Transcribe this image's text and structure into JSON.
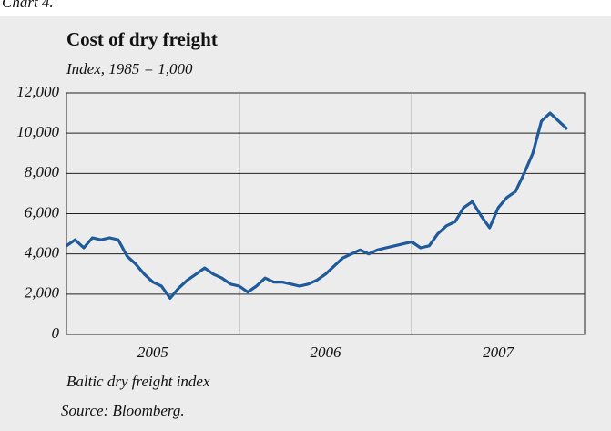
{
  "caption": "Chart 4.",
  "chart_data": {
    "type": "line",
    "title": "Cost of dry freight",
    "subtitle": "Index, 1985 = 1,000",
    "x": [
      2005.0,
      2005.05,
      2005.1,
      2005.15,
      2005.2,
      2005.25,
      2005.3,
      2005.35,
      2005.4,
      2005.45,
      2005.5,
      2005.55,
      2005.6,
      2005.65,
      2005.7,
      2005.75,
      2005.8,
      2005.85,
      2005.9,
      2005.95,
      2006.0,
      2006.05,
      2006.1,
      2006.15,
      2006.2,
      2006.25,
      2006.3,
      2006.35,
      2006.4,
      2006.45,
      2006.5,
      2006.55,
      2006.6,
      2006.65,
      2006.7,
      2006.75,
      2006.8,
      2006.85,
      2006.9,
      2006.95,
      2007.0,
      2007.05,
      2007.1,
      2007.15,
      2007.2,
      2007.25,
      2007.3,
      2007.35,
      2007.4,
      2007.45,
      2007.5,
      2007.55,
      2007.6,
      2007.65,
      2007.7,
      2007.75,
      2007.8,
      2007.85,
      2007.9
    ],
    "series": [
      {
        "name": "Baltic dry freight index",
        "color": "#1f5a9a",
        "values": [
          4400,
          4700,
          4300,
          4800,
          4700,
          4800,
          4700,
          3900,
          3500,
          3000,
          2600,
          2400,
          1800,
          2300,
          2700,
          3000,
          3300,
          3000,
          2800,
          2500,
          2400,
          2100,
          2400,
          2800,
          2600,
          2600,
          2500,
          2400,
          2500,
          2700,
          3000,
          3400,
          3800,
          4000,
          4200,
          4000,
          4200,
          4300,
          4400,
          4500,
          4600,
          4300,
          4400,
          5000,
          5400,
          5600,
          6300,
          6600,
          5900,
          5300,
          6300,
          6800,
          7100,
          8000,
          9000,
          10600,
          11000,
          10600,
          10200
        ]
      }
    ],
    "xlim": [
      2005,
      2008
    ],
    "xticks": [
      2006,
      2007
    ],
    "xtick_labels": [
      {
        "value": 2005.5,
        "label": "2005"
      },
      {
        "value": 2006.5,
        "label": "2006"
      },
      {
        "value": 2007.5,
        "label": "2007"
      }
    ],
    "ylim": [
      0,
      12000
    ],
    "yticks": [
      0,
      {
        "value": 2000,
        "label": "2,000"
      },
      {
        "value": 4000,
        "label": "4,000"
      },
      {
        "value": 6000,
        "label": "6,000"
      },
      {
        "value": 8000,
        "label": "8,000"
      },
      {
        "value": 10000,
        "label": "10,000"
      },
      {
        "value": 12000,
        "label": "12,000"
      }
    ],
    "grid": true,
    "source": "Source: Bloomberg."
  }
}
